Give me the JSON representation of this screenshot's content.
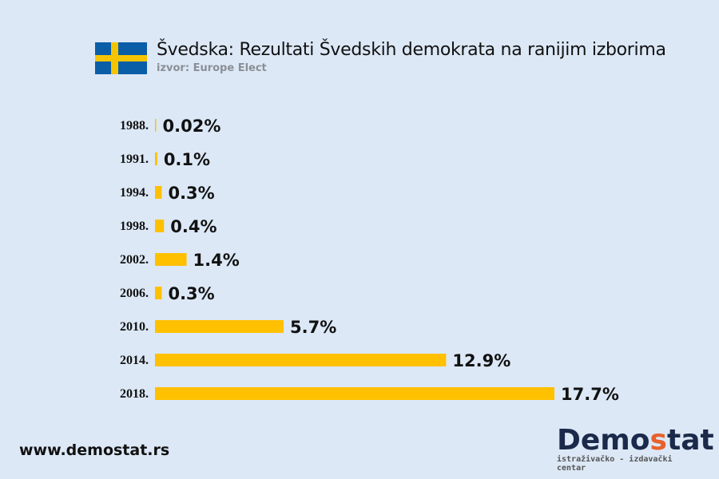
{
  "header": {
    "title": "Švedska: Rezultati Švedskih demokrata na ranijim izborima",
    "source": "izvor: Europe Elect",
    "flag": "sweden-flag"
  },
  "footer": {
    "website": "www.demostat.rs",
    "logo_prefix": "Demo",
    "logo_s": "s",
    "logo_suffix": "tat",
    "logo_tagline": "istraživačko - izdavački centar"
  },
  "colors": {
    "bar": "#ffc000",
    "background": "#dce8f6",
    "flag_blue": "#0a5ea8",
    "flag_yellow": "#f5c400"
  },
  "chart_data": {
    "type": "bar",
    "orientation": "horizontal",
    "title": "Švedska: Rezultati Švedskih demokrata na ranijim izborima",
    "categories": [
      "1988.",
      "1991.",
      "1994.",
      "1998.",
      "2002.",
      "2006.",
      "2010.",
      "2014.",
      "2018."
    ],
    "values": [
      0.02,
      0.1,
      0.3,
      0.4,
      1.4,
      0.3,
      5.7,
      12.9,
      17.7
    ],
    "labels": [
      "0.02%",
      "0.1%",
      "0.3%",
      "0.4%",
      "1.4%",
      "0.3%",
      "5.7%",
      "12.9%",
      "17.7%"
    ],
    "xlim": [
      0,
      17.7
    ],
    "grid": false,
    "legend": "none"
  }
}
